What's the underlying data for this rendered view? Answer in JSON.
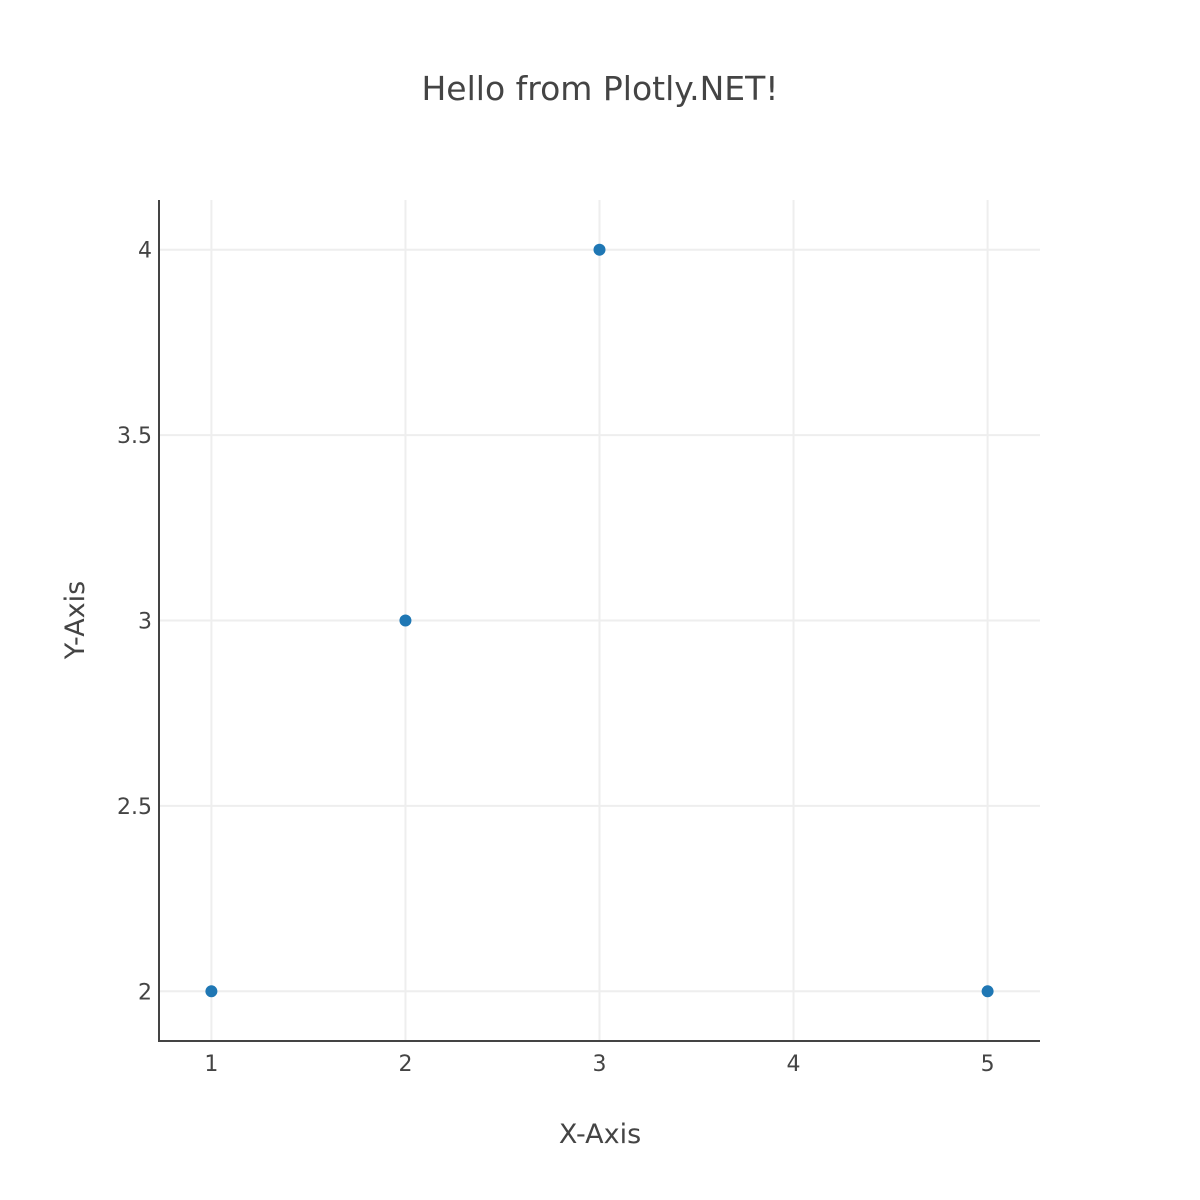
{
  "chart_data": {
    "type": "scatter",
    "title": "Hello from Plotly.NET!",
    "xlabel": "X-Axis",
    "ylabel": "Y-Axis",
    "x": [
      1,
      2,
      3,
      5
    ],
    "y": [
      2,
      3,
      4,
      2
    ],
    "xlim": [
      0.73,
      5.27
    ],
    "ylim": [
      1.866,
      4.134
    ],
    "xticks": [
      1,
      2,
      3,
      4,
      5
    ],
    "xtick_labels": [
      "1",
      "2",
      "3",
      "4",
      "5"
    ],
    "yticks": [
      2,
      2.5,
      3,
      3.5,
      4
    ],
    "ytick_labels": [
      "2",
      "2.5",
      "3",
      "3.5",
      "4"
    ],
    "grid": true,
    "legend": false,
    "marker_color": "#1f77b4"
  }
}
